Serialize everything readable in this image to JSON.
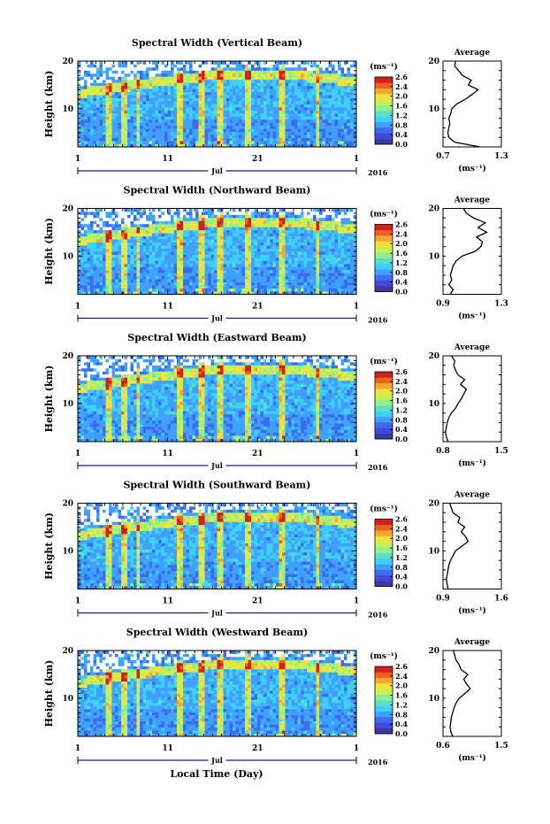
{
  "figure": {
    "xlabel": "Local Time (Day)",
    "ylabel": "Height (km)",
    "month": "Jul",
    "year": "2016",
    "units": "(ms⁻¹)",
    "avg_title": "Average",
    "avg_xlabel": "(ms⁻¹)"
  },
  "colors": {
    "scale": [
      "#3a3aa0",
      "#4646d8",
      "#3a6cf0",
      "#3fa0ff",
      "#3fd0f5",
      "#5ee0c8",
      "#8ef090",
      "#c8f050",
      "#f5e040",
      "#f5a830",
      "#f06020",
      "#d02020"
    ]
  },
  "chart_data": [
    {
      "type": "heatmap",
      "title": "Spectral Width (Vertical Beam)",
      "x_ticks": [
        "1",
        "11",
        "21",
        "1"
      ],
      "xlim": [
        1,
        32
      ],
      "ylim": [
        2,
        20
      ],
      "y_ticks": [
        "10",
        "20"
      ],
      "colorbar": {
        "range": [
          0.0,
          2.6
        ],
        "tick_labels": [
          "2.6",
          "2.4",
          "2.0",
          "1.6",
          "1.2",
          "0.8",
          "0.4",
          "0.0"
        ]
      },
      "average_profile": {
        "xlim": [
          0.7,
          1.3
        ],
        "x_ticks": [
          "0.7",
          "1.3"
        ],
        "heights": [
          2,
          3,
          4,
          5,
          6,
          7,
          8,
          9,
          10,
          11,
          12,
          13,
          14,
          15,
          16,
          17,
          18,
          19,
          20
        ],
        "values": [
          1.08,
          0.82,
          0.76,
          0.75,
          0.76,
          0.77,
          0.76,
          0.78,
          0.79,
          0.84,
          0.93,
          1.0,
          1.06,
          0.96,
          0.99,
          0.9,
          0.86,
          0.82,
          0.83
        ]
      }
    },
    {
      "type": "heatmap",
      "title": "Spectral Width (Northward Beam)",
      "x_ticks": [
        "1",
        "11",
        "21",
        "1"
      ],
      "xlim": [
        1,
        32
      ],
      "ylim": [
        2,
        20
      ],
      "y_ticks": [
        "10",
        "20"
      ],
      "colorbar": {
        "range": [
          0.0,
          2.6
        ],
        "tick_labels": [
          "2.6",
          "2.4",
          "2.0",
          "1.6",
          "1.2",
          "0.8",
          "0.4",
          "0.0"
        ]
      },
      "average_profile": {
        "xlim": [
          0.9,
          1.3
        ],
        "x_ticks": [
          "0.9",
          "1.3"
        ],
        "heights": [
          2,
          3,
          4,
          5,
          6,
          7,
          8,
          9,
          10,
          11,
          12,
          13,
          14,
          15,
          16,
          17,
          18,
          19,
          20
        ],
        "values": [
          0.95,
          0.97,
          0.94,
          0.96,
          0.95,
          0.96,
          0.97,
          0.99,
          1.03,
          1.12,
          1.16,
          1.17,
          1.13,
          1.2,
          1.14,
          1.19,
          1.11,
          1.06,
          1.04
        ]
      }
    },
    {
      "type": "heatmap",
      "title": "Spectral Width (Eastward Beam)",
      "x_ticks": [
        "1",
        "11",
        "21",
        "1"
      ],
      "xlim": [
        1,
        32
      ],
      "ylim": [
        2,
        20
      ],
      "y_ticks": [
        "10",
        "20"
      ],
      "colorbar": {
        "range": [
          0.0,
          2.6
        ],
        "tick_labels": [
          "2.6",
          "2.4",
          "2.0",
          "1.6",
          "1.2",
          "0.8",
          "0.4",
          "0.0"
        ]
      },
      "average_profile": {
        "xlim": [
          0.8,
          1.5
        ],
        "x_ticks": [
          "0.8",
          "1.5"
        ],
        "heights": [
          2,
          3,
          4,
          5,
          6,
          7,
          8,
          9,
          10,
          11,
          12,
          13,
          14,
          15,
          16,
          17,
          18,
          19,
          20
        ],
        "values": [
          0.86,
          0.84,
          0.83,
          0.84,
          0.85,
          0.87,
          0.9,
          0.95,
          0.98,
          1.02,
          1.05,
          1.08,
          1.01,
          1.06,
          0.98,
          0.95,
          0.93,
          0.94,
          0.9
        ]
      }
    },
    {
      "type": "heatmap",
      "title": "Spectral Width (Southward Beam)",
      "x_ticks": [
        "1",
        "11",
        "21",
        "1"
      ],
      "xlim": [
        1,
        32
      ],
      "ylim": [
        2,
        20
      ],
      "y_ticks": [
        "10",
        "20"
      ],
      "colorbar": {
        "range": [
          0.0,
          2.6
        ],
        "tick_labels": [
          "2.6",
          "2.4",
          "2.0",
          "1.6",
          "1.2",
          "0.8",
          "0.4",
          "0.0"
        ]
      },
      "average_profile": {
        "xlim": [
          0.9,
          1.6
        ],
        "x_ticks": [
          "0.9",
          "1.6"
        ],
        "heights": [
          2,
          3,
          4,
          5,
          6,
          7,
          8,
          9,
          10,
          11,
          12,
          13,
          14,
          15,
          16,
          17,
          18,
          19,
          20
        ],
        "values": [
          0.96,
          0.95,
          0.94,
          0.95,
          0.96,
          0.97,
          0.99,
          1.02,
          1.05,
          1.13,
          1.2,
          1.17,
          1.12,
          1.16,
          1.08,
          1.1,
          1.02,
          1.0,
          0.98
        ]
      }
    },
    {
      "type": "heatmap",
      "title": "Spectral Width (Westward Beam)",
      "x_ticks": [
        "1",
        "11",
        "21",
        "1"
      ],
      "xlim": [
        1,
        32
      ],
      "ylim": [
        2,
        20
      ],
      "y_ticks": [
        "10",
        "20"
      ],
      "colorbar": {
        "range": [
          0.0,
          2.6
        ],
        "tick_labels": [
          "2.6",
          "2.4",
          "2.0",
          "1.6",
          "1.2",
          "0.8",
          "0.4",
          "0.0"
        ]
      },
      "average_profile": {
        "xlim": [
          0.6,
          1.5
        ],
        "x_ticks": [
          "0.6",
          "1.5"
        ],
        "heights": [
          2,
          3,
          4,
          5,
          6,
          7,
          8,
          9,
          10,
          11,
          12,
          13,
          14,
          15,
          16,
          17,
          18,
          19,
          20
        ],
        "values": [
          0.75,
          0.72,
          0.71,
          0.72,
          0.73,
          0.75,
          0.77,
          0.8,
          0.85,
          0.94,
          1.02,
          0.96,
          0.92,
          0.98,
          0.88,
          0.85,
          0.8,
          0.78,
          0.76
        ]
      }
    }
  ]
}
